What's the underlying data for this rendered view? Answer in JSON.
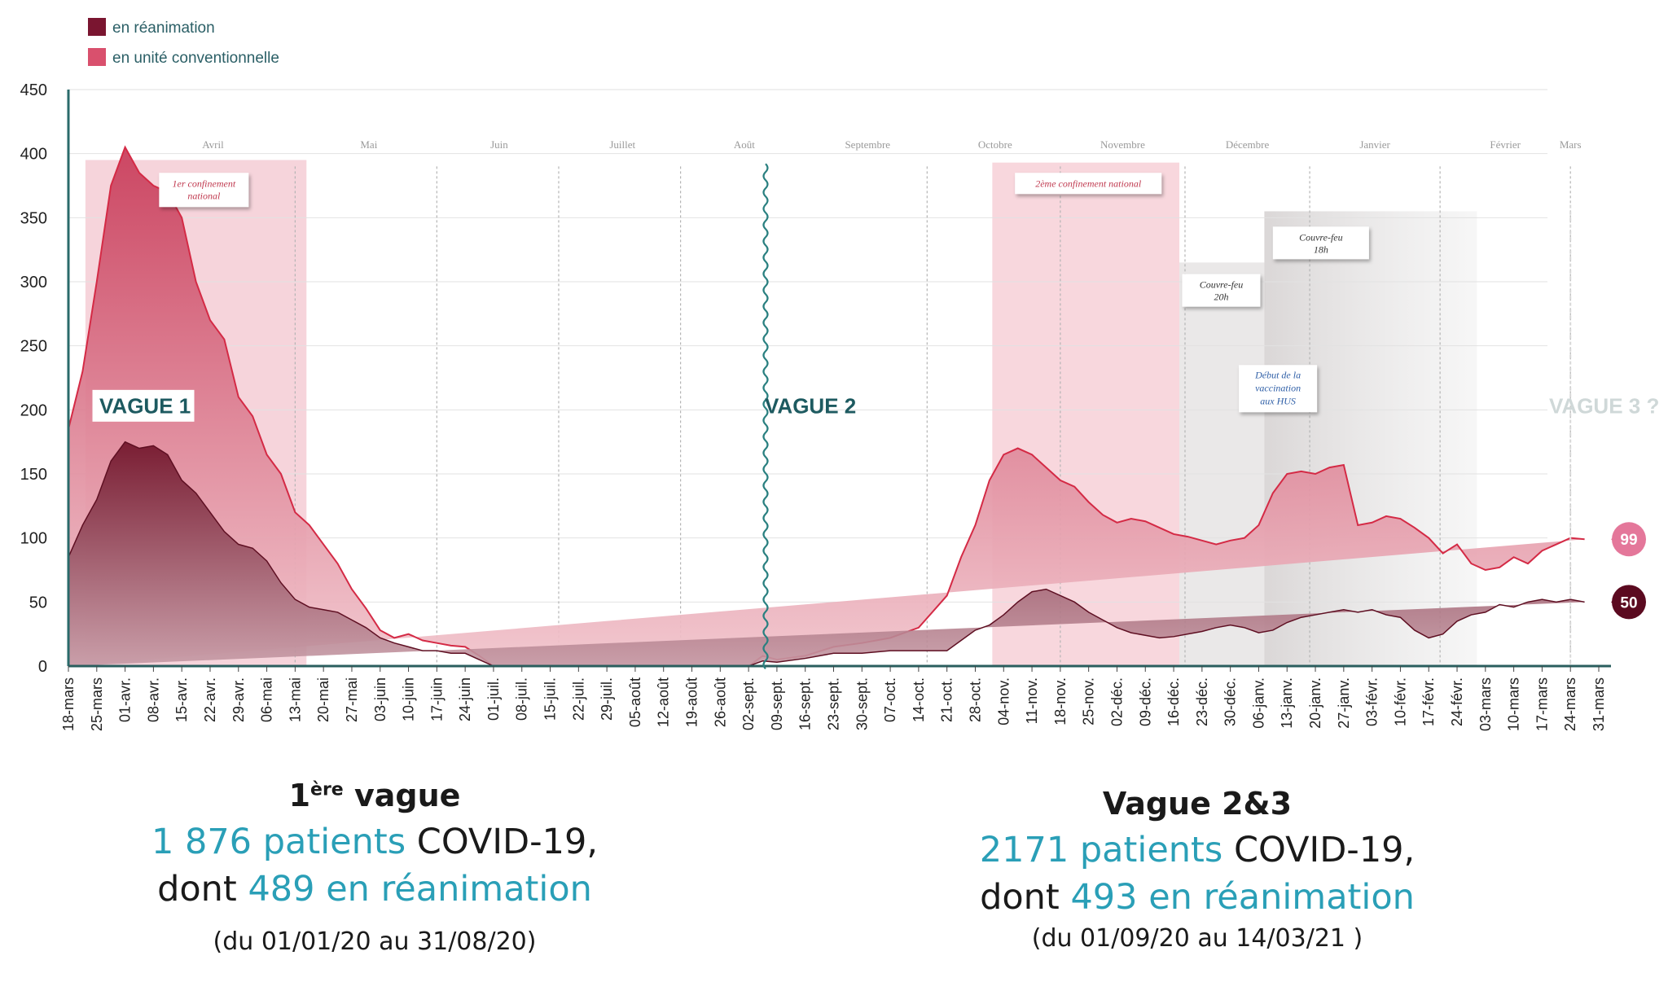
{
  "chart_data": {
    "type": "area",
    "legend": [
      {
        "label": "en réanimation",
        "color": "#7a1530"
      },
      {
        "label": "en unité conventionnelle",
        "color": "#d9506d"
      }
    ],
    "y_ticks": [
      0,
      50,
      100,
      150,
      200,
      250,
      300,
      350,
      400,
      450
    ],
    "ylim": [
      0,
      450
    ],
    "x_tick_labels": [
      "18-mars",
      "25-mars",
      "01-avr.",
      "08-avr.",
      "15-avr.",
      "22-avr.",
      "29-avr.",
      "06-mai",
      "13-mai",
      "20-mai",
      "27-mai",
      "03-juin",
      "10-juin",
      "17-juin",
      "24-juin",
      "01-juil.",
      "08-juil.",
      "15-juil.",
      "22-juil.",
      "29-juil.",
      "05-août",
      "12-août",
      "19-août",
      "26-août",
      "02-sept.",
      "09-sept.",
      "16-sept.",
      "23-sept.",
      "30-sept.",
      "07-oct.",
      "14-oct.",
      "21-oct.",
      "28-oct.",
      "04-nov.",
      "11-nov.",
      "18-nov.",
      "25-nov.",
      "02-déc.",
      "09-déc.",
      "16-déc.",
      "23-déc.",
      "30-déc.",
      "06-janv.",
      "13-janv.",
      "20-janv.",
      "27-janv.",
      "03-févr.",
      "10-févr.",
      "17-févr.",
      "24-févr.",
      "03-mars",
      "10-mars",
      "17-mars",
      "24-mars",
      "31-mars"
    ],
    "months": [
      "Avril",
      "Mai",
      "Juin",
      "Juillet",
      "Août",
      "Septembre",
      "Octobre",
      "Novembre",
      "Décembre",
      "Janvier",
      "Février",
      "Mars"
    ],
    "series": [
      {
        "name": "en unité conventionnelle",
        "week_index": [
          0,
          0.5,
          1,
          1.5,
          2,
          2.5,
          3,
          3.5,
          4,
          4.5,
          5,
          5.5,
          6,
          6.5,
          7,
          7.5,
          8,
          8.5,
          9,
          9.5,
          10,
          10.5,
          11,
          11.5,
          12,
          12.5,
          13,
          13.5,
          14,
          14.5,
          15,
          16,
          17,
          18,
          19,
          20,
          21,
          22,
          23,
          24,
          24.5,
          25,
          26,
          27,
          28,
          29,
          30,
          31,
          31.5,
          32,
          32.5,
          33,
          33.5,
          34,
          34.5,
          35,
          35.5,
          36,
          36.5,
          37,
          37.5,
          38,
          38.5,
          39,
          39.5,
          40,
          40.5,
          41,
          41.5,
          42,
          42.5,
          43,
          43.5,
          44,
          44.5,
          45,
          45.5,
          46,
          46.5,
          47,
          47.5,
          48,
          48.5,
          49,
          49.5,
          50,
          50.5,
          51,
          51.5,
          52,
          52.5,
          53,
          53.5,
          54
        ],
        "values": [
          185,
          230,
          300,
          375,
          405,
          385,
          375,
          370,
          350,
          300,
          270,
          255,
          210,
          195,
          165,
          150,
          120,
          110,
          95,
          80,
          60,
          45,
          28,
          22,
          25,
          20,
          18,
          16,
          15,
          8,
          0,
          0,
          0,
          0,
          0,
          0,
          0,
          0,
          0,
          0,
          8,
          5,
          8,
          15,
          18,
          22,
          30,
          55,
          85,
          110,
          145,
          165,
          170,
          165,
          155,
          145,
          140,
          128,
          118,
          112,
          115,
          113,
          108,
          103,
          101,
          98,
          95,
          98,
          100,
          110,
          135,
          150,
          152,
          150,
          155,
          157,
          110,
          112,
          117,
          115,
          108,
          100,
          88,
          95,
          80,
          75,
          77,
          85,
          80,
          90,
          95,
          100,
          99
        ]
      },
      {
        "name": "en réanimation",
        "week_index": [
          0,
          0.5,
          1,
          1.5,
          2,
          2.5,
          3,
          3.5,
          4,
          4.5,
          5,
          5.5,
          6,
          6.5,
          7,
          7.5,
          8,
          8.5,
          9,
          9.5,
          10,
          10.5,
          11,
          11.5,
          12,
          12.5,
          13,
          13.5,
          14,
          14.5,
          15,
          16,
          17,
          18,
          19,
          20,
          21,
          22,
          23,
          24,
          24.5,
          25,
          26,
          27,
          28,
          29,
          30,
          31,
          31.5,
          32,
          32.5,
          33,
          33.5,
          34,
          34.5,
          35,
          35.5,
          36,
          36.5,
          37,
          37.5,
          38,
          38.5,
          39,
          39.5,
          40,
          40.5,
          41,
          41.5,
          42,
          42.5,
          43,
          43.5,
          44,
          44.5,
          45,
          45.5,
          46,
          46.5,
          47,
          47.5,
          48,
          48.5,
          49,
          49.5,
          50,
          50.5,
          51,
          51.5,
          52,
          52.5,
          53,
          53.5,
          54
        ],
        "values": [
          85,
          110,
          130,
          160,
          175,
          170,
          172,
          165,
          145,
          135,
          120,
          105,
          95,
          92,
          82,
          65,
          52,
          46,
          44,
          42,
          36,
          30,
          22,
          18,
          15,
          12,
          12,
          10,
          10,
          5,
          0,
          0,
          0,
          0,
          0,
          0,
          0,
          0,
          0,
          0,
          4,
          3,
          6,
          10,
          10,
          12,
          12,
          12,
          20,
          28,
          32,
          40,
          50,
          58,
          60,
          55,
          50,
          42,
          36,
          30,
          26,
          24,
          22,
          23,
          25,
          27,
          30,
          32,
          30,
          26,
          28,
          34,
          38,
          40,
          42,
          44,
          42,
          44,
          40,
          38,
          28,
          22,
          25,
          35,
          40,
          42,
          48,
          46,
          50,
          52,
          50,
          52,
          50
        ]
      }
    ],
    "end_labels": [
      "99",
      "50"
    ],
    "periods": [
      {
        "label_lines": [
          "1er confinement",
          "national"
        ],
        "start_week": 0.6,
        "end_week": 8.4
      },
      {
        "label_lines": [
          "2ème confinement national"
        ],
        "start_week": 32.6,
        "end_week": 39.2
      },
      {
        "label_lines": [
          "Couvre-feu",
          "20h"
        ],
        "start_week": 39.2,
        "end_week": 42.2
      },
      {
        "label_lines": [
          "Couvre-feu",
          "18h"
        ],
        "start_week": 42.2,
        "end_week": 49.7
      }
    ],
    "annotations": [
      {
        "label_lines": [
          "Début de la",
          "vaccination",
          "aux HUS"
        ]
      }
    ],
    "wave_labels": [
      "VAGUE 1",
      "VAGUE 2",
      "VAGUE 3 ?"
    ]
  },
  "summary_left": {
    "title_prefix": "1",
    "title_sup": "ère",
    "title_suffix": " vague",
    "patients_highlight": "1 876 patients",
    "patients_rest": " COVID-19,",
    "dont": "dont ",
    "icu_highlight": "489 en réanimation",
    "date_range": "(du 01/01/20 au 31/08/20)"
  },
  "summary_right": {
    "title": "Vague 2&3",
    "patients_highlight": "2171 patients",
    "patients_rest": " COVID-19,",
    "dont": "dont ",
    "icu_highlight": "493 en réanimation",
    "date_range": "(du 01/09/20 au 14/03/21 )"
  }
}
